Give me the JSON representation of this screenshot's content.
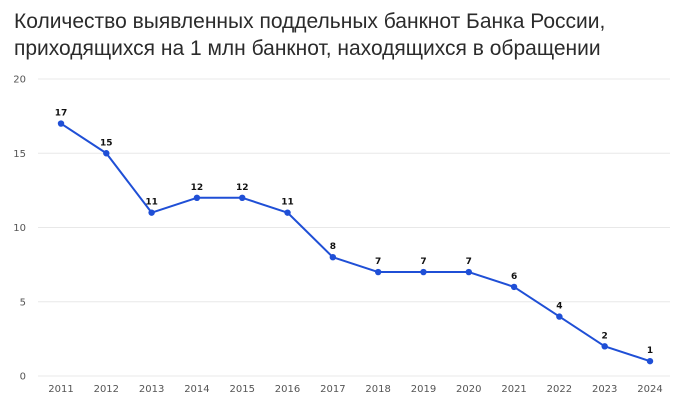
{
  "header": {
    "title_line1": "Количество выявленных поддельных банкнот Банка России,",
    "title_line2": "приходящихся на 1 млн банкнот, находящихся в обращении"
  },
  "chart_data": {
    "type": "line",
    "title": "Количество выявленных поддельных банкнот Банка России, приходящихся на 1 млн банкнот, находящихся в обращении",
    "x": [
      "2011",
      "2012",
      "2013",
      "2014",
      "2015",
      "2016",
      "2017",
      "2018",
      "2019",
      "2020",
      "2021",
      "2022",
      "2023",
      "2024"
    ],
    "values": [
      17,
      15,
      11,
      12,
      12,
      11,
      8,
      7,
      7,
      7,
      6,
      4,
      2,
      1
    ],
    "ylim": [
      0,
      20
    ],
    "yticks": [
      "0",
      "5",
      "10",
      "15",
      "20"
    ],
    "grid": true,
    "colors": {
      "line": "#1f4fd6",
      "grid": "#e8e8e8"
    }
  }
}
